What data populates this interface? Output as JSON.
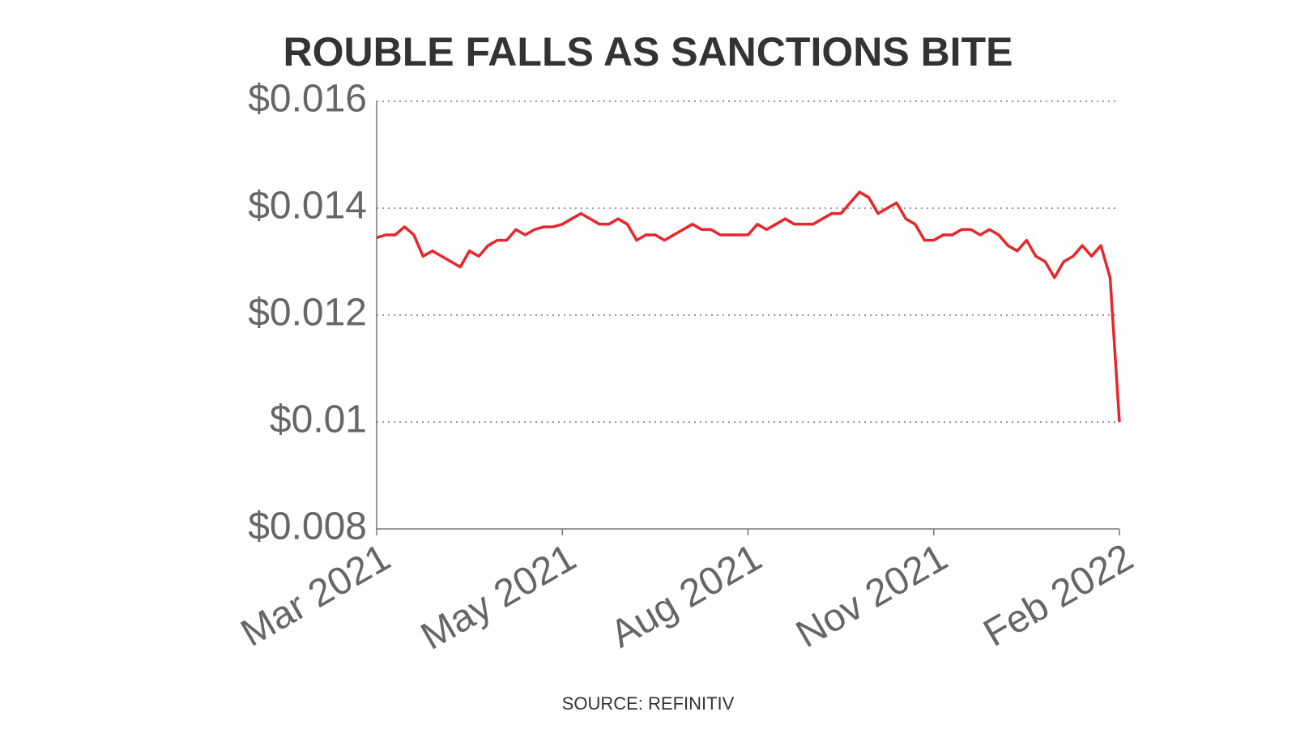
{
  "chart_data": {
    "type": "line",
    "title": "ROUBLE FALLS AS SANCTIONS BITE",
    "source": "SOURCE: REFINITIV",
    "categories": [
      "Mar 2021",
      null,
      null,
      null,
      null,
      null,
      null,
      null,
      null,
      null,
      null,
      null,
      null,
      null,
      null,
      null,
      null,
      null,
      null,
      null,
      "May 2021",
      null,
      null,
      null,
      null,
      null,
      null,
      null,
      null,
      null,
      null,
      null,
      null,
      null,
      null,
      null,
      null,
      null,
      null,
      null,
      "Aug 2021",
      null,
      null,
      null,
      null,
      null,
      null,
      null,
      null,
      null,
      null,
      null,
      null,
      null,
      null,
      null,
      null,
      null,
      null,
      null,
      "Nov 2021",
      null,
      null,
      null,
      null,
      null,
      null,
      null,
      null,
      null,
      null,
      null,
      null,
      null,
      null,
      null,
      null,
      null,
      null,
      null,
      "Feb 2022"
    ],
    "values": [
      0.01345,
      0.0135,
      0.0135,
      0.01365,
      0.0135,
      0.0131,
      0.0132,
      0.0131,
      0.013,
      0.0129,
      0.0132,
      0.0131,
      0.0133,
      0.0134,
      0.0134,
      0.0136,
      0.0135,
      0.0136,
      0.01365,
      0.01365,
      0.0137,
      0.0138,
      0.0139,
      0.0138,
      0.0137,
      0.0137,
      0.0138,
      0.0137,
      0.0134,
      0.0135,
      0.0135,
      0.0134,
      0.0135,
      0.0136,
      0.0137,
      0.0136,
      0.0136,
      0.0135,
      0.0135,
      0.0135,
      0.0135,
      0.0137,
      0.0136,
      0.0137,
      0.0138,
      0.0137,
      0.0137,
      0.0137,
      0.0138,
      0.0139,
      0.0139,
      0.0141,
      0.0143,
      0.0142,
      0.0139,
      0.014,
      0.0141,
      0.0138,
      0.0137,
      0.0134,
      0.0134,
      0.0135,
      0.0135,
      0.0136,
      0.0136,
      0.0135,
      0.0136,
      0.0135,
      0.0133,
      0.0132,
      0.0134,
      0.0131,
      0.013,
      0.0127,
      0.013,
      0.0131,
      0.0133,
      0.0131,
      0.0133,
      0.0127,
      0.01
    ],
    "color": "#e8262b",
    "ylim": [
      0.008,
      0.016
    ],
    "yticks": [
      {
        "value": 0.008,
        "label": "$0.008"
      },
      {
        "value": 0.01,
        "label": "$0.01"
      },
      {
        "value": 0.012,
        "label": "$0.012"
      },
      {
        "value": 0.014,
        "label": "$0.014"
      },
      {
        "value": 0.016,
        "label": "$0.016"
      }
    ],
    "grid": true
  }
}
